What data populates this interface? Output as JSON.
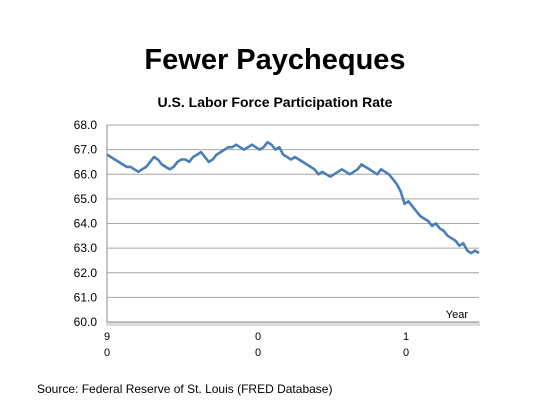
{
  "title": "Fewer Paycheques",
  "source": "Source: Federal Reserve of St. Louis (FRED Database)",
  "chart_data": {
    "type": "line",
    "title": "U.S. Labor Force Participation Rate",
    "xlabel": "Year",
    "ylabel": "",
    "ylim": [
      60,
      68
    ],
    "yticks": [
      60,
      61,
      62,
      63,
      64,
      65,
      66,
      67,
      68
    ],
    "ytick_labels": [
      "60.0",
      "61.0",
      "62.0",
      "63.0",
      "64.0",
      "65.0",
      "66.0",
      "67.0",
      "68.0"
    ],
    "xtick_labels": [
      {
        "top": "9",
        "bottom": "0"
      },
      {
        "top": "0",
        "bottom": "0"
      },
      {
        "top": "1",
        "bottom": "0"
      }
    ],
    "grid": true,
    "line_color": "#4a7fb5",
    "series": [
      {
        "values": [
          66.8,
          66.7,
          66.6,
          66.5,
          66.4,
          66.3,
          66.3,
          66.2,
          66.1,
          66.2,
          66.3,
          66.5,
          66.7,
          66.6,
          66.4,
          66.3,
          66.2,
          66.3,
          66.5,
          66.6,
          66.6,
          66.5,
          66.7,
          66.8,
          66.9,
          66.7,
          66.5,
          66.6,
          66.8,
          66.9,
          67.0,
          67.1,
          67.1,
          67.2,
          67.1,
          67.0,
          67.1,
          67.2,
          67.1,
          67.0,
          67.1,
          67.3,
          67.2,
          67.0,
          67.1,
          66.8,
          66.7,
          66.6,
          66.7,
          66.6,
          66.5,
          66.4,
          66.3,
          66.2,
          66.0,
          66.1,
          66.0,
          65.9,
          66.0,
          66.1,
          66.2,
          66.1,
          66.0,
          66.1,
          66.2,
          66.4,
          66.3,
          66.2,
          66.1,
          66.0,
          66.2,
          66.1,
          66.0,
          65.8,
          65.6,
          65.3,
          64.8,
          64.9,
          64.7,
          64.5,
          64.3,
          64.2,
          64.1,
          63.9,
          64.0,
          63.8,
          63.7,
          63.5,
          63.4,
          63.3,
          63.1,
          63.2,
          62.9,
          62.8,
          62.9,
          62.8
        ]
      }
    ]
  }
}
